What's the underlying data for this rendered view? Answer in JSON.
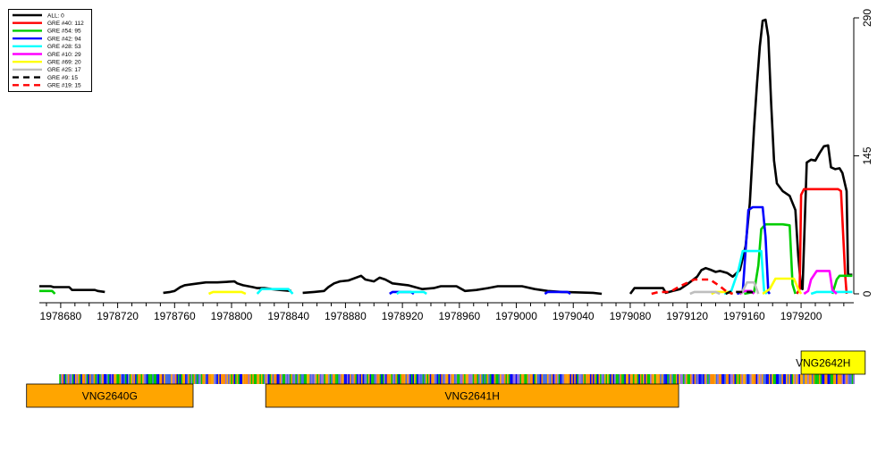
{
  "chart_data": {
    "type": "line",
    "xlim": [
      1978665,
      1979237
    ],
    "ylim": [
      0,
      290
    ],
    "x_ticks": [
      1978680,
      1978720,
      1978760,
      1978800,
      1978840,
      1978880,
      1978920,
      1978960,
      1979000,
      1979040,
      1979080,
      1979120,
      1979160,
      1979200
    ],
    "x_tick_labels": [
      "1978680",
      "1978720",
      "1978760",
      "1978800",
      "1978840",
      "1978880",
      "1978920",
      "1978960",
      "1979000",
      "1979040",
      "1979080",
      "1979120",
      "1979160",
      "1979200"
    ],
    "y_ticks": [
      0,
      145,
      290
    ],
    "y_tick_labels": [
      "0",
      "145",
      "290"
    ],
    "legend_position": "top-left",
    "series": [
      {
        "name": "ALL: 0",
        "color": "#000000",
        "dash": "solid",
        "segments": [
          [
            [
              1978665,
              8
            ],
            [
              1978673,
              8
            ],
            [
              1978675,
              7
            ],
            [
              1978686,
              7
            ],
            [
              1978688,
              4
            ],
            [
              1978704,
              4
            ],
            [
              1978706,
              3
            ],
            [
              1978711,
              2
            ]
          ],
          [
            [
              1978752,
              1
            ],
            [
              1978757,
              2
            ],
            [
              1978760,
              3
            ],
            [
              1978764,
              7
            ],
            [
              1978767,
              9
            ],
            [
              1978772,
              10
            ],
            [
              1978782,
              12
            ],
            [
              1978790,
              12
            ],
            [
              1978802,
              13
            ],
            [
              1978804,
              11
            ],
            [
              1978808,
              9
            ],
            [
              1978815,
              7
            ],
            [
              1978818,
              6
            ],
            [
              1978823,
              6
            ],
            [
              1978828,
              5
            ],
            [
              1978834,
              4
            ],
            [
              1978842,
              3
            ]
          ],
          [
            [
              1978850,
              1
            ],
            [
              1978858,
              2
            ],
            [
              1978865,
              3
            ],
            [
              1978868,
              7
            ],
            [
              1978872,
              11
            ],
            [
              1978876,
              13
            ],
            [
              1978882,
              14
            ],
            [
              1978891,
              19
            ],
            [
              1978894,
              15
            ],
            [
              1978900,
              13
            ],
            [
              1978904,
              17
            ],
            [
              1978908,
              15
            ],
            [
              1978913,
              11
            ],
            [
              1978924,
              9
            ],
            [
              1978934,
              5
            ],
            [
              1978942,
              6
            ],
            [
              1978947,
              8
            ],
            [
              1978958,
              8
            ],
            [
              1978964,
              3
            ],
            [
              1978972,
              4
            ],
            [
              1978980,
              6
            ],
            [
              1978987,
              8
            ],
            [
              1979004,
              8
            ],
            [
              1979013,
              5
            ],
            [
              1979022,
              3
            ],
            [
              1979032,
              2
            ],
            [
              1979054,
              1
            ],
            [
              1979060,
              0
            ]
          ],
          [
            [
              1979080,
              0
            ],
            [
              1979083,
              6
            ],
            [
              1979093,
              6
            ],
            [
              1979103,
              6
            ],
            [
              1979105,
              1
            ],
            [
              1979110,
              3
            ],
            [
              1979115,
              5
            ],
            [
              1979120,
              10
            ],
            [
              1979127,
              18
            ],
            [
              1979130,
              25
            ],
            [
              1979133,
              27
            ],
            [
              1979137,
              25
            ],
            [
              1979140,
              23
            ],
            [
              1979143,
              24
            ],
            [
              1979148,
              22
            ],
            [
              1979152,
              18
            ],
            [
              1979157,
              25
            ],
            [
              1979161,
              50
            ],
            [
              1979164,
              95
            ],
            [
              1979167,
              175
            ],
            [
              1979169,
              220
            ],
            [
              1979171,
              260
            ],
            [
              1979173,
              287
            ],
            [
              1979175,
              288
            ],
            [
              1979177,
              270
            ],
            [
              1979179,
              200
            ],
            [
              1979181,
              140
            ],
            [
              1979183,
              116
            ],
            [
              1979187,
              108
            ],
            [
              1979192,
              103
            ],
            [
              1979196,
              88
            ],
            [
              1979198,
              40
            ],
            [
              1979200,
              6
            ],
            [
              1979201,
              5
            ],
            [
              1979204,
              138
            ],
            [
              1979207,
              141
            ],
            [
              1979210,
              140
            ],
            [
              1979213,
              148
            ],
            [
              1979216,
              155
            ],
            [
              1979219,
              156
            ],
            [
              1979221,
              133
            ],
            [
              1979224,
              131
            ],
            [
              1979227,
              132
            ],
            [
              1979229,
              127
            ],
            [
              1979232,
              108
            ],
            [
              1979233,
              20
            ],
            [
              1979236,
              20
            ]
          ]
        ]
      },
      {
        "name": "GRE #40: 112",
        "color": "#ff0000",
        "dash": "solid",
        "segments": [
          [
            [
              1979197,
              0
            ],
            [
              1979199,
              5
            ],
            [
              1979200,
              104
            ],
            [
              1979202,
              110
            ],
            [
              1979226,
              110
            ],
            [
              1979228,
              108
            ],
            [
              1979231,
              20
            ],
            [
              1979232,
              0
            ]
          ]
        ]
      },
      {
        "name": "GRE #54: 95",
        "color": "#00cd00",
        "dash": "solid",
        "segments": [
          [
            [
              1978665,
              3
            ],
            [
              1978674,
              3
            ],
            [
              1978676,
              0
            ]
          ],
          [
            [
              1979160,
              0
            ],
            [
              1979167,
              2
            ],
            [
              1979170,
              30
            ],
            [
              1979172,
              68
            ],
            [
              1979175,
              73
            ],
            [
              1979187,
              73
            ],
            [
              1979192,
              72
            ],
            [
              1979194,
              10
            ],
            [
              1979196,
              0
            ]
          ],
          [
            [
              1979222,
              0
            ],
            [
              1979225,
              15
            ],
            [
              1979227,
              19
            ],
            [
              1979236,
              19
            ]
          ]
        ]
      },
      {
        "name": "GRE #42: 94",
        "color": "#0000ff",
        "dash": "solid",
        "segments": [
          [
            [
              1978911,
              0
            ],
            [
              1978913,
              2
            ],
            [
              1978926,
              2
            ],
            [
              1978928,
              0
            ]
          ],
          [
            [
              1979020,
              0
            ],
            [
              1979022,
              2
            ],
            [
              1979036,
              2
            ],
            [
              1979038,
              0
            ]
          ],
          [
            [
              1979155,
              0
            ],
            [
              1979159,
              2
            ],
            [
              1979163,
              88
            ],
            [
              1979166,
              91
            ],
            [
              1979173,
              91
            ],
            [
              1979175,
              60
            ],
            [
              1979177,
              2
            ],
            [
              1979178,
              0
            ]
          ]
        ]
      },
      {
        "name": "GRE #28: 53",
        "color": "#00ffff",
        "dash": "solid",
        "segments": [
          [
            [
              1978818,
              0
            ],
            [
              1978821,
              5
            ],
            [
              1978840,
              5
            ],
            [
              1978843,
              0
            ]
          ],
          [
            [
              1978916,
              0
            ],
            [
              1978918,
              2
            ],
            [
              1978935,
              2
            ],
            [
              1978937,
              0
            ]
          ],
          [
            [
              1979146,
              0
            ],
            [
              1979151,
              3
            ],
            [
              1979156,
              25
            ],
            [
              1979159,
              45
            ],
            [
              1979172,
              45
            ],
            [
              1979174,
              3
            ],
            [
              1979176,
              0
            ]
          ],
          [
            [
              1979207,
              0
            ],
            [
              1979211,
              2
            ],
            [
              1979236,
              2
            ]
          ]
        ]
      },
      {
        "name": "GRE #10: 29",
        "color": "#ff00ff",
        "dash": "solid",
        "segments": [
          [
            [
              1979157,
              0
            ],
            [
              1979160,
              3
            ],
            [
              1979165,
              3
            ],
            [
              1979167,
              0
            ]
          ],
          [
            [
              1979202,
              0
            ],
            [
              1979205,
              3
            ],
            [
              1979207,
              15
            ],
            [
              1979211,
              24
            ],
            [
              1979220,
              24
            ],
            [
              1979222,
              4
            ],
            [
              1979225,
              0
            ]
          ]
        ]
      },
      {
        "name": "GRE #69: 20",
        "color": "#ffff00",
        "dash": "solid",
        "segments": [
          [
            [
              1978784,
              0
            ],
            [
              1978787,
              2
            ],
            [
              1978807,
              2
            ],
            [
              1978810,
              0
            ]
          ],
          [
            [
              1979137,
              0
            ],
            [
              1979140,
              2
            ],
            [
              1979149,
              2
            ],
            [
              1979152,
              0
            ]
          ],
          [
            [
              1979173,
              0
            ],
            [
              1979178,
              5
            ],
            [
              1979182,
              16
            ],
            [
              1979195,
              16
            ],
            [
              1979198,
              5
            ],
            [
              1979200,
              0
            ]
          ]
        ]
      },
      {
        "name": "GRE #25: 17",
        "color": "#bebebe",
        "dash": "solid",
        "segments": [
          [
            [
              1979122,
              0
            ],
            [
              1979125,
              2
            ],
            [
              1979140,
              2
            ],
            [
              1979143,
              0
            ]
          ],
          [
            [
              1979158,
              0
            ],
            [
              1979162,
              12
            ],
            [
              1979167,
              12
            ],
            [
              1979170,
              0
            ]
          ]
        ]
      },
      {
        "name": "GRE #9: 15",
        "color": "#000000",
        "dash": "dashed",
        "segments": [
          [
            [
              1979147,
              0
            ],
            [
              1979150,
              2
            ],
            [
              1979165,
              2
            ],
            [
              1979168,
              0
            ]
          ]
        ]
      },
      {
        "name": "GRE #19: 15",
        "color": "#ff0000",
        "dash": "dashed",
        "segments": [
          [
            [
              1979095,
              0
            ],
            [
              1979100,
              2
            ],
            [
              1979108,
              2
            ],
            [
              1979115,
              8
            ],
            [
              1979125,
              15
            ],
            [
              1979136,
              15
            ],
            [
              1979143,
              8
            ],
            [
              1979148,
              2
            ],
            [
              1979152,
              0
            ]
          ]
        ]
      }
    ],
    "genes": [
      {
        "label": "VNG2640G",
        "start": 1978656,
        "end": 1978773,
        "row": "bottom"
      },
      {
        "label": "VNG2641H",
        "start": 1978824,
        "end": 1979114,
        "row": "bottom"
      },
      {
        "label": "VNG2642H",
        "start": 1979200,
        "end": 1979245,
        "row": "top"
      }
    ],
    "sequence_track": {
      "start": 1978679,
      "end": 1979237
    }
  },
  "colors": {
    "gene_fill": "#ffa500",
    "gene_top_fill": "#ffff00",
    "sequence_palette": [
      "#ff8c00",
      "#0000ff",
      "#00c800",
      "#9370db",
      "#ffa500",
      "#4169e1"
    ]
  }
}
